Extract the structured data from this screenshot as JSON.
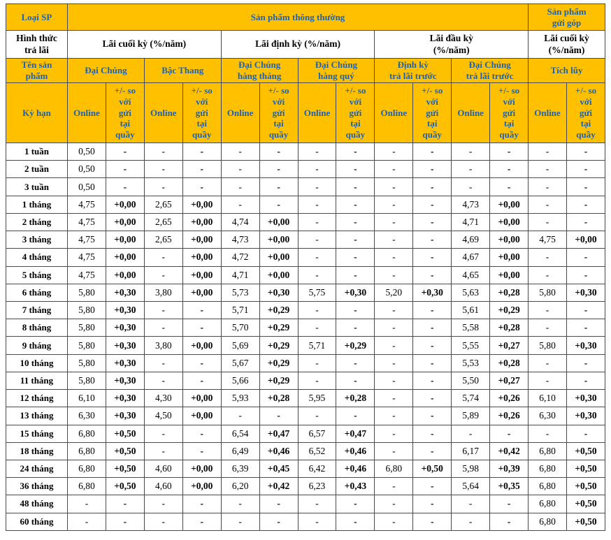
{
  "colors": {
    "header_bg": "#FFC000",
    "header_text": "#1E62AE",
    "border": "#4a4a4a",
    "body_text": "#000000"
  },
  "table": {
    "corner": {
      "loai_sp": "Loại SP",
      "hinh_thuc_tra_lai": "Hình thức\ntrả lãi",
      "ten_san_pham": "Tên sản\nphẩm",
      "ky_han": "Kỳ hạn"
    },
    "top_groups": [
      {
        "label": "Sản phẩm thông thường",
        "span": 12
      },
      {
        "label": "Sản phẩm\ngửi góp",
        "span": 2
      }
    ],
    "payment_groups": [
      {
        "label": "Lãi cuối kỳ (%/năm)",
        "span": 4
      },
      {
        "label": "Lãi định kỳ (%/năm)",
        "span": 4
      },
      {
        "label": "Lãi đầu kỳ\n(%/năm)",
        "span": 4
      },
      {
        "label": "Lãi cuối kỳ\n(%/năm)",
        "span": 2
      }
    ],
    "products": [
      "Đại Chúng",
      "Bậc Thang",
      "Đại Chúng\nhàng tháng",
      "Đại Chúng\nhàng quý",
      "Định kỳ\ntrả lãi trước",
      "Đại Chúng\ntrả lãi trước",
      "Tích lũy"
    ],
    "col_headers": {
      "online": "Online",
      "vs_counter": "+/- so\nvới\ngửi\ntại\nquầy"
    },
    "rows": [
      {
        "term": "1 tuần",
        "values": [
          "0,50",
          "-",
          "-",
          "-",
          "-",
          "-",
          "-",
          "-",
          "-",
          "-",
          "-",
          "-",
          "-",
          "-"
        ]
      },
      {
        "term": "2 tuần",
        "values": [
          "0,50",
          "-",
          "-",
          "-",
          "-",
          "-",
          "-",
          "-",
          "-",
          "-",
          "-",
          "-",
          "-",
          "-"
        ]
      },
      {
        "term": "3 tuần",
        "values": [
          "0,50",
          "-",
          "-",
          "-",
          "-",
          "-",
          "-",
          "-",
          "-",
          "-",
          "-",
          "-",
          "-",
          "-"
        ]
      },
      {
        "term": "1 tháng",
        "values": [
          "4,75",
          "+0,00",
          "2,65",
          "+0,00",
          "-",
          "-",
          "-",
          "-",
          "-",
          "-",
          "4,73",
          "+0,00",
          "-",
          "-"
        ]
      },
      {
        "term": "2 tháng",
        "values": [
          "4,75",
          "+0,00",
          "2,65",
          "+0,00",
          "4,74",
          "+0,00",
          "-",
          "-",
          "-",
          "-",
          "4,71",
          "+0,00",
          "-",
          "-"
        ]
      },
      {
        "term": "3 tháng",
        "values": [
          "4,75",
          "+0,00",
          "2,65",
          "+0,00",
          "4,73",
          "+0,00",
          "-",
          "-",
          "-",
          "-",
          "4,69",
          "+0,00",
          "4,75",
          "+0,00"
        ]
      },
      {
        "term": "4 tháng",
        "values": [
          "4,75",
          "+0,00",
          "-",
          "+0,00",
          "4,72",
          "+0,00",
          "-",
          "-",
          "-",
          "-",
          "4,67",
          "+0,00",
          "-",
          "-"
        ]
      },
      {
        "term": "5 tháng",
        "values": [
          "4,75",
          "+0,00",
          "-",
          "+0,00",
          "4,71",
          "+0,00",
          "-",
          "-",
          "-",
          "-",
          "4,65",
          "+0,00",
          "-",
          "-"
        ]
      },
      {
        "term": "6 tháng",
        "values": [
          "5,80",
          "+0,30",
          "3,80",
          "+0,00",
          "5,73",
          "+0,30",
          "5,75",
          "+0,30",
          "5,20",
          "+0,30",
          "5,63",
          "+0,28",
          "5,80",
          "+0,30"
        ]
      },
      {
        "term": "7 tháng",
        "values": [
          "5,80",
          "+0,30",
          "-",
          "-",
          "5,71",
          "+0,29",
          "-",
          "-",
          "-",
          "-",
          "5,61",
          "+0,29",
          "-",
          "-"
        ]
      },
      {
        "term": "8 tháng",
        "values": [
          "5,80",
          "+0,30",
          "-",
          "-",
          "5,70",
          "+0,29",
          "-",
          "-",
          "-",
          "-",
          "5,58",
          "+0,28",
          "-",
          "-"
        ]
      },
      {
        "term": "9 tháng",
        "values": [
          "5,80",
          "+0,30",
          "3,80",
          "+0,00",
          "5,69",
          "+0,29",
          "5,71",
          "+0,29",
          "-",
          "-",
          "5,55",
          "+0,27",
          "5,80",
          "+0,30"
        ]
      },
      {
        "term": "10 tháng",
        "values": [
          "5,80",
          "+0,30",
          "-",
          "-",
          "5,67",
          "+0,29",
          "-",
          "-",
          "-",
          "-",
          "5,53",
          "+0,28",
          "-",
          "-"
        ]
      },
      {
        "term": "11 tháng",
        "values": [
          "5,80",
          "+0,30",
          "-",
          "-",
          "5,66",
          "+0,29",
          "-",
          "-",
          "-",
          "-",
          "5,50",
          "+0,27",
          "-",
          "-"
        ]
      },
      {
        "term": "12 tháng",
        "values": [
          "6,10",
          "+0,30",
          "4,30",
          "+0,00",
          "5,93",
          "+0,28",
          "5,95",
          "+0,28",
          "-",
          "-",
          "5,74",
          "+0,26",
          "6,10",
          "+0,30"
        ]
      },
      {
        "term": "13 tháng",
        "values": [
          "6,30",
          "+0,30",
          "4,50",
          "+0,00",
          "-",
          "-",
          "-",
          "-",
          "-",
          "-",
          "5,89",
          "+0,26",
          "6,30",
          "+0,30"
        ]
      },
      {
        "term": "15 tháng",
        "values": [
          "6,80",
          "+0,50",
          "-",
          "-",
          "6,54",
          "+0,47",
          "6,57",
          "+0,47",
          "-",
          "-",
          "-",
          "-",
          "-",
          "-"
        ]
      },
      {
        "term": "18 tháng",
        "values": [
          "6,80",
          "+0,50",
          "-",
          "-",
          "6,49",
          "+0,46",
          "6,52",
          "+0,46",
          "-",
          "-",
          "6,17",
          "+0,42",
          "6,80",
          "+0,50"
        ]
      },
      {
        "term": "24 tháng",
        "values": [
          "6,80",
          "+0,50",
          "4,60",
          "+0,00",
          "6,39",
          "+0,45",
          "6,42",
          "+0,46",
          "6,80",
          "+0,50",
          "5,98",
          "+0,39",
          "6,80",
          "+0,50"
        ]
      },
      {
        "term": "36 tháng",
        "values": [
          "6,80",
          "+0,50",
          "4,60",
          "+0,00",
          "6,20",
          "+0,42",
          "6,23",
          "+0,43",
          "-",
          "-",
          "5,64",
          "+0,35",
          "6,80",
          "+0,50"
        ]
      },
      {
        "term": "48 tháng",
        "values": [
          "-",
          "-",
          "-",
          "-",
          "-",
          "-",
          "-",
          "-",
          "-",
          "-",
          "-",
          "-",
          "6,80",
          "+0,50"
        ]
      },
      {
        "term": "60 tháng",
        "values": [
          "-",
          "-",
          "-",
          "-",
          "-",
          "-",
          "-",
          "-",
          "-",
          "-",
          "-",
          "-",
          "6,80",
          "+0,50"
        ]
      }
    ]
  }
}
